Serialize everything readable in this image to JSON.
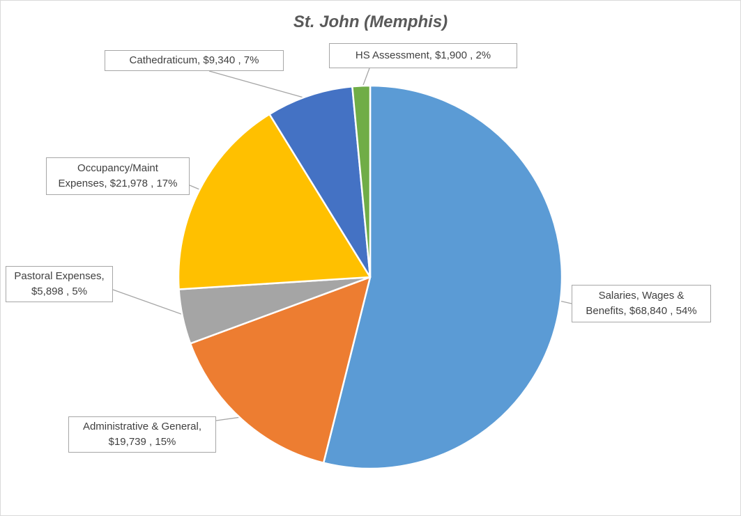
{
  "chart_data": {
    "type": "pie",
    "title": "St. John (Memphis)",
    "start_angle_deg": 0,
    "direction": "clockwise",
    "slices": [
      {
        "name": "Salaries, Wages & Benefits",
        "value": 68840,
        "value_label": "$68,840",
        "percent_label": "54%",
        "color": "#5b9bd5"
      },
      {
        "name": "Administrative & General",
        "value": 19739,
        "value_label": "$19,739",
        "percent_label": "15%",
        "color": "#ed7d31"
      },
      {
        "name": "Pastoral Expenses",
        "value": 5898,
        "value_label": "$5,898",
        "percent_label": "5%",
        "color": "#a5a5a5"
      },
      {
        "name": "Occupancy/Maint Expenses",
        "value": 21978,
        "value_label": "$21,978",
        "percent_label": "17%",
        "color": "#ffc000"
      },
      {
        "name": "Cathedraticum",
        "value": 9340,
        "value_label": "$9,340",
        "percent_label": "7%",
        "color": "#4472c4"
      },
      {
        "name": "HS Assessment",
        "value": 1900,
        "value_label": "$1,900",
        "percent_label": "2%",
        "color": "#70ad47"
      }
    ],
    "labels": {
      "salaries": {
        "line1": "Salaries, Wages &",
        "line2": "Benefits,  $68,840 , 54%"
      },
      "admin": {
        "line1": "Administrative & General,",
        "line2": "$19,739 , 15%"
      },
      "pastoral": {
        "line1": "Pastoral Expenses,",
        "line2": "$5,898 , 5%"
      },
      "occupancy": {
        "line1": "Occupancy/Maint",
        "line2": "Expenses,  $21,978 , 17%"
      },
      "cathedraticum": {
        "line1": "Cathedraticum,  $9,340 , 7%"
      },
      "hs": {
        "line1": "HS Assessment,  $1,900 , 2%"
      }
    },
    "leader_color": "#a6a6a6"
  }
}
